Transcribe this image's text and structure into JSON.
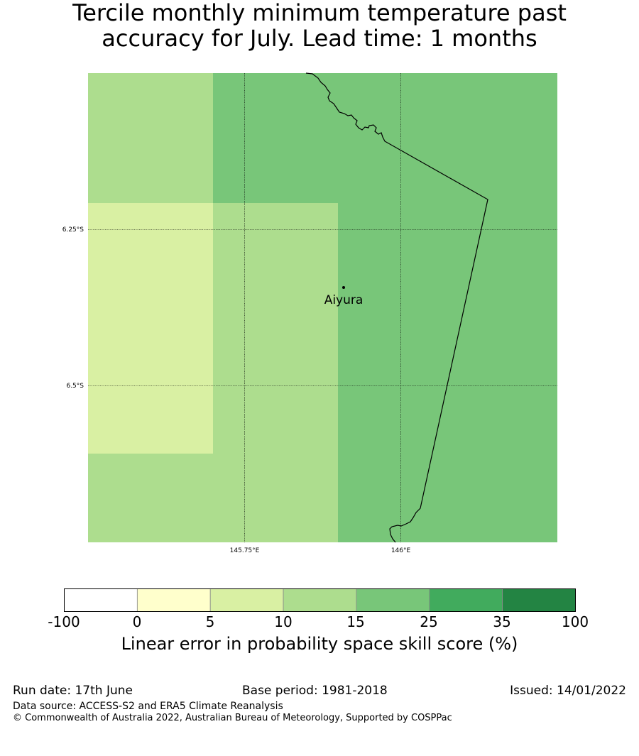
{
  "title": {
    "line1": "Tercile monthly minimum temperature past",
    "line2": "accuracy for July. Lead time: 1 months"
  },
  "map": {
    "lat_labels": [
      "6.25°S",
      "6.5°S"
    ],
    "lon_labels": [
      "145.75°E",
      "146°E"
    ],
    "place": {
      "name": "Aiyura"
    }
  },
  "colorbar": {
    "ticks": [
      "-100",
      "0",
      "5",
      "10",
      "15",
      "25",
      "35",
      "100"
    ],
    "colors": [
      "#ffffff",
      "#ffffcc",
      "#d9f0a3",
      "#addd8e",
      "#78c679",
      "#41ab5d",
      "#238443"
    ],
    "label": "Linear error in probability space skill score (%)"
  },
  "footer": {
    "run_date": "Run date: 17th June",
    "base_period": "Base period: 1981-2018",
    "issued": "Issued: 14/01/2022",
    "data_source": "Data source: ACCESS-S2 and ERA5 Climate Reanalysis",
    "copyright": "© Commonwealth of Australia 2022, Australian Bureau of Meteorology, Supported by COSPPac"
  }
}
